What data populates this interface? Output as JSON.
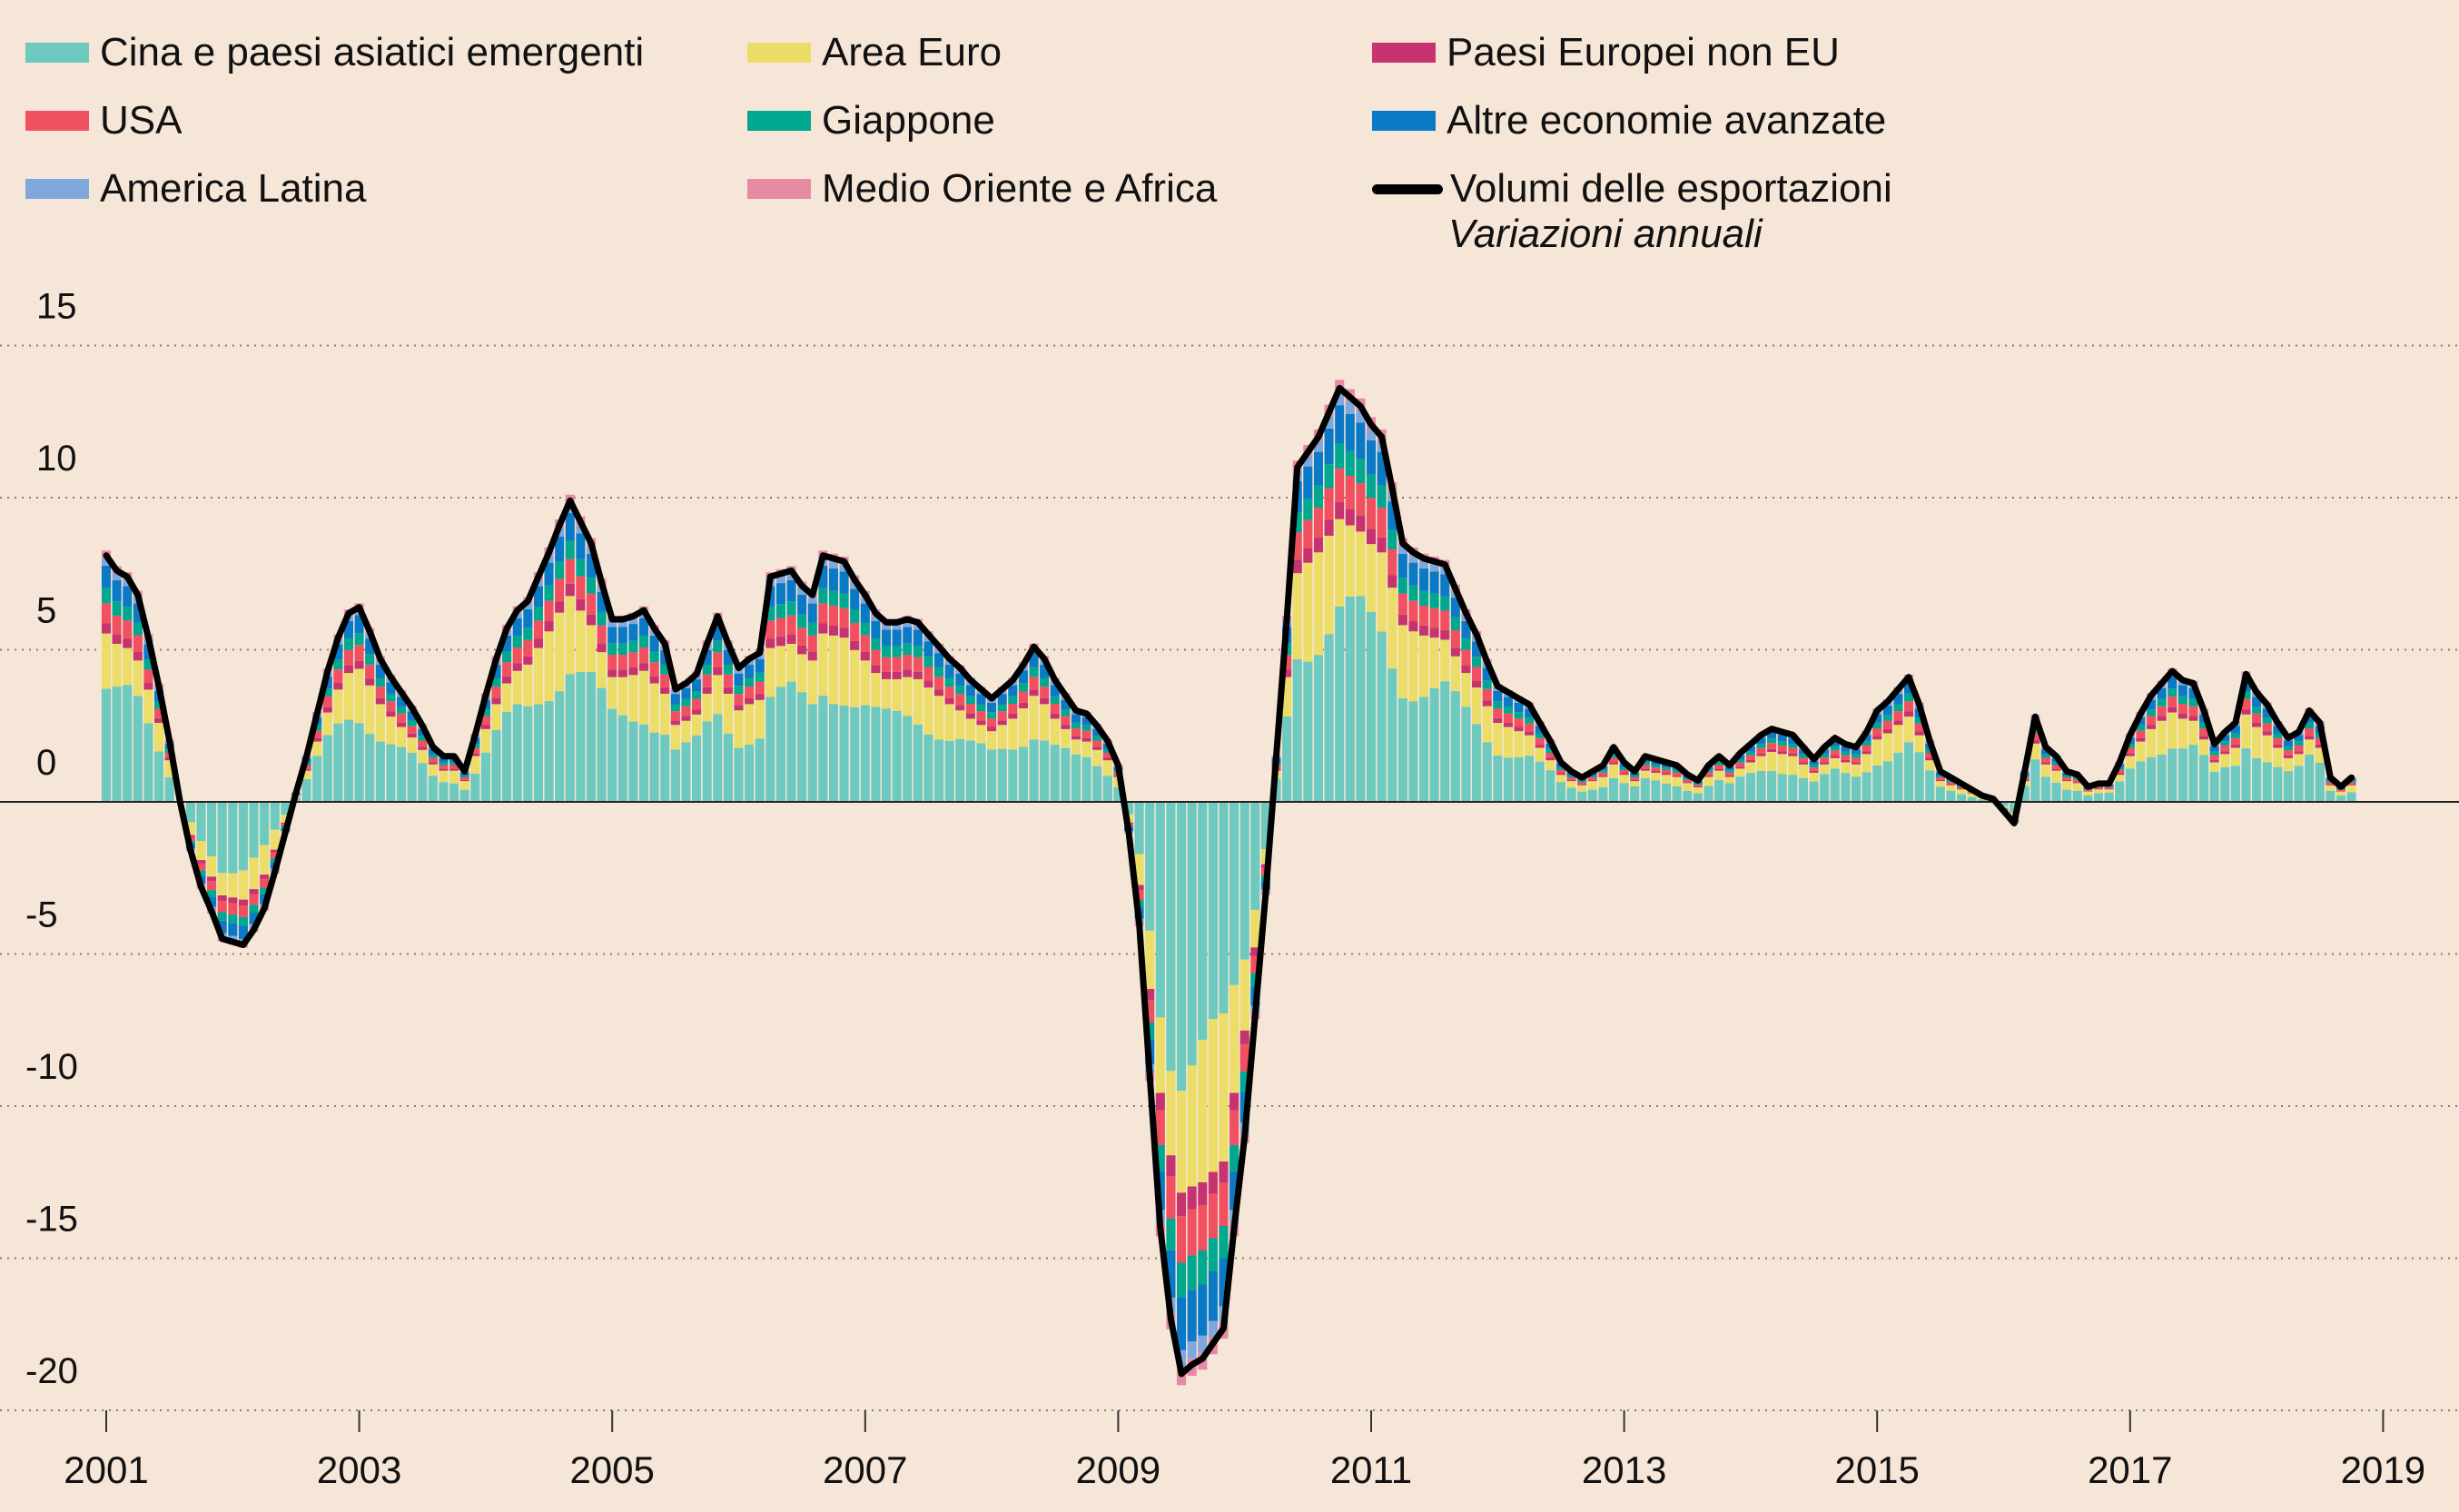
{
  "chart_data": {
    "type": "bar",
    "stacked": true,
    "title": "",
    "subtitle": "Variazioni annuali",
    "xlabel": "",
    "ylabel": "",
    "ylim": [
      -20,
      15
    ],
    "yticks": [
      15,
      10,
      5,
      0,
      -5,
      -10,
      -15,
      -20
    ],
    "xticks": [
      "2001",
      "2003",
      "2005",
      "2007",
      "2009",
      "2011",
      "2013",
      "2015",
      "2017",
      "2019"
    ],
    "x_start": "2001-01",
    "x_frequency": "monthly",
    "grid": true,
    "legend_position": "top",
    "series": [
      {
        "name": "Cina e paesi asiatici emergenti",
        "color": "#6ec9bf",
        "share": 0.45
      },
      {
        "name": "Area Euro",
        "color": "#ebdd68",
        "share": 0.22
      },
      {
        "name": "Paesi Europei non EU",
        "color": "#c6336e",
        "share": 0.04
      },
      {
        "name": "USA",
        "color": "#f0505f",
        "share": 0.08
      },
      {
        "name": "Giappone",
        "color": "#00a890",
        "share": 0.06
      },
      {
        "name": "Altre economie avanzate",
        "color": "#0a7ac6",
        "share": 0.09
      },
      {
        "name": "America Latina",
        "color": "#80a8dc",
        "share": 0.03
      },
      {
        "name": "Medio Oriente e Africa",
        "color": "#e88aa3",
        "share": 0.03
      }
    ],
    "line": {
      "name": "Volumi delle esportazioni",
      "color": "#000000",
      "values": [
        8.1,
        7.6,
        7.4,
        6.8,
        5.4,
        3.8,
        2.0,
        0.0,
        -1.6,
        -2.8,
        -3.6,
        -4.5,
        -4.6,
        -4.7,
        -4.2,
        -3.5,
        -2.3,
        -1.0,
        0.3,
        1.5,
        2.9,
        4.3,
        5.4,
        6.2,
        6.4,
        5.6,
        4.7,
        4.1,
        3.6,
        3.1,
        2.5,
        1.8,
        1.5,
        1.5,
        1.0,
        2.2,
        3.5,
        4.7,
        5.7,
        6.3,
        6.6,
        7.4,
        8.2,
        9.1,
        9.9,
        9.2,
        8.5,
        7.2,
        6.0,
        6.0,
        6.1,
        6.3,
        5.7,
        5.2,
        3.7,
        3.9,
        4.2,
        5.2,
        6.1,
        5.2,
        4.4,
        4.7,
        4.9,
        7.4,
        7.5,
        7.6,
        7.1,
        6.8,
        8.1,
        8.0,
        7.9,
        7.3,
        6.8,
        6.2,
        5.9,
        5.9,
        6.0,
        5.9,
        5.5,
        5.1,
        4.7,
        4.4,
        4.0,
        3.7,
        3.4,
        3.7,
        4.0,
        4.5,
        5.1,
        4.7,
        4.0,
        3.5,
        3.0,
        2.9,
        2.5,
        2.0,
        1.2,
        -1.0,
        -4.0,
        -9.0,
        -14.0,
        -17.0,
        -18.8,
        -18.5,
        -18.3,
        -17.8,
        -17.3,
        -14.0,
        -11.0,
        -7.0,
        -3.0,
        1.5,
        6.0,
        11.0,
        11.5,
        12.0,
        12.8,
        13.6,
        13.3,
        13.0,
        12.4,
        12.0,
        10.3,
        8.5,
        8.2,
        8.0,
        7.9,
        7.8,
        7.0,
        6.2,
        5.5,
        4.6,
        3.8,
        3.6,
        3.4,
        3.2,
        2.6,
        2.0,
        1.3,
        1.0,
        0.8,
        1.0,
        1.2,
        1.8,
        1.3,
        1.0,
        1.5,
        1.4,
        1.3,
        1.2,
        0.9,
        0.7,
        1.2,
        1.5,
        1.2,
        1.6,
        1.9,
        2.2,
        2.4,
        2.3,
        2.2,
        1.8,
        1.4,
        1.8,
        2.1,
        1.9,
        1.8,
        2.3,
        3.0,
        3.3,
        3.7,
        4.1,
        3.2,
        2.0,
        1.0,
        0.8,
        0.6,
        0.4,
        0.2,
        0.1,
        -0.3,
        -0.7,
        1.0,
        2.8,
        1.8,
        1.5,
        1.0,
        0.9,
        0.5,
        0.6,
        0.6,
        1.3,
        2.2,
        2.9,
        3.5,
        3.9,
        4.3,
        4.0,
        3.9,
        3.0,
        1.9,
        2.3,
        2.6,
        4.2,
        3.6,
        3.2,
        2.6,
        2.1,
        2.3,
        3.0,
        2.6,
        0.8,
        0.5,
        0.8
      ]
    }
  },
  "legend": {
    "items": [
      {
        "label": "Cina e paesi asiatici emergenti",
        "color": "#6ec9bf"
      },
      {
        "label": "Area Euro",
        "color": "#ebdd68"
      },
      {
        "label": "Paesi Europei non EU",
        "color": "#c6336e"
      },
      {
        "label": "USA",
        "color": "#f0505f"
      },
      {
        "label": "Giappone",
        "color": "#00a890"
      },
      {
        "label": "Altre economie avanzate",
        "color": "#0a7ac6"
      },
      {
        "label": "America Latina",
        "color": "#80a8dc"
      },
      {
        "label": "Medio Oriente e Africa",
        "color": "#e88aa3"
      }
    ],
    "line_label": "Volumi delle esportazioni",
    "subtitle": "Variazioni annuali"
  }
}
